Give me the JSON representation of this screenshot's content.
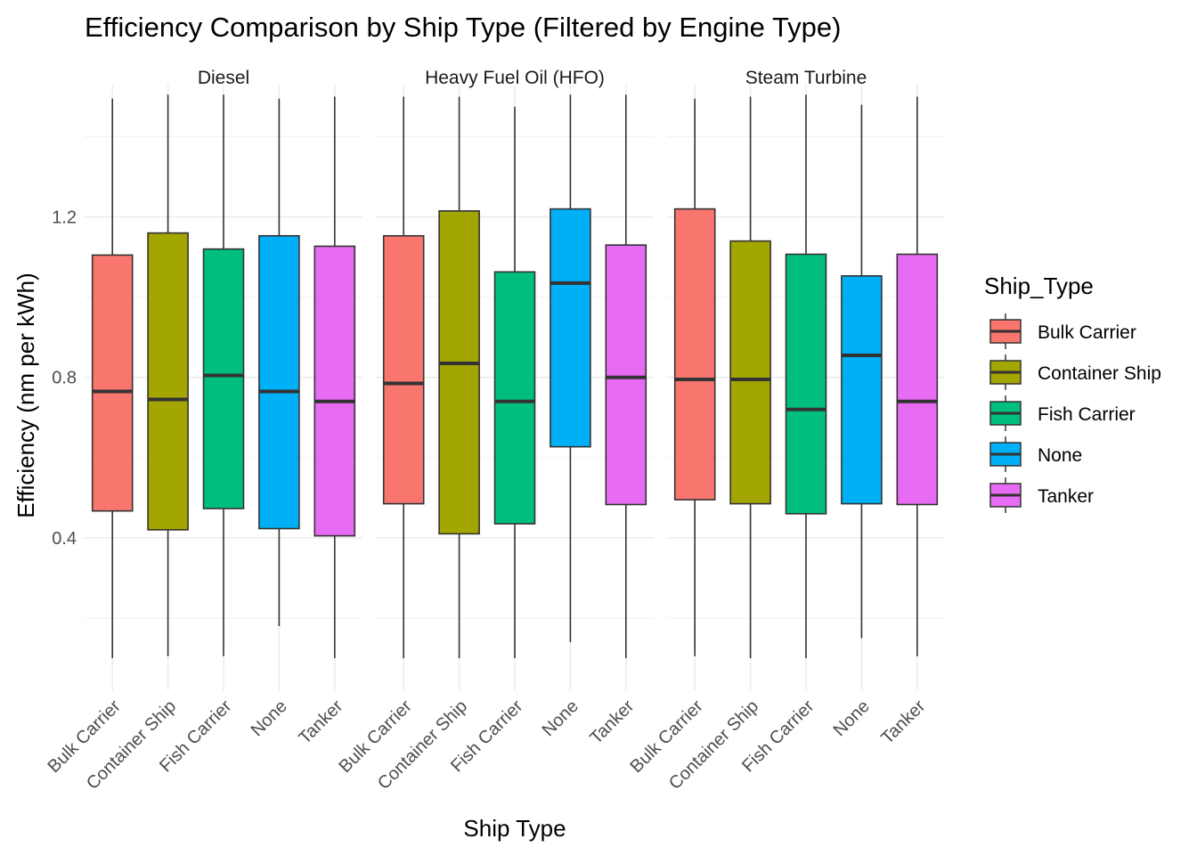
{
  "chart_data": {
    "type": "boxplot",
    "title": "Efficiency Comparison by Ship Type (Filtered by Engine Type)",
    "xlabel": "Ship Type",
    "ylabel": "Efficiency (nm per kWh)",
    "facets": [
      "Diesel",
      "Heavy Fuel Oil (HFO)",
      "Steam Turbine"
    ],
    "categories": [
      "Bulk Carrier",
      "Container Ship",
      "Fish Carrier",
      "None",
      "Tanker"
    ],
    "y_ticks": [
      "0.4",
      "0.8",
      "1.2"
    ],
    "ylim": [
      0.02,
      1.53
    ],
    "grid": true,
    "legend": {
      "title": "Ship_Type",
      "position": "right",
      "items": [
        "Bulk Carrier",
        "Container Ship",
        "Fish Carrier",
        "None",
        "Tanker"
      ]
    },
    "colors": {
      "Bulk Carrier": "#F8766D",
      "Container Ship": "#A3A500",
      "Fish Carrier": "#00BF7D",
      "None": "#00B0F6",
      "Tanker": "#E76BF3"
    },
    "boxes": {
      "Diesel": [
        {
          "category": "Bulk Carrier",
          "min": 0.1,
          "q1": 0.467,
          "median": 0.765,
          "q3": 1.105,
          "max": 1.495
        },
        {
          "category": "Container Ship",
          "min": 0.105,
          "q1": 0.42,
          "median": 0.745,
          "q3": 1.16,
          "max": 1.505
        },
        {
          "category": "Fish Carrier",
          "min": 0.105,
          "q1": 0.473,
          "median": 0.805,
          "q3": 1.12,
          "max": 1.505
        },
        {
          "category": "None",
          "min": 0.18,
          "q1": 0.423,
          "median": 0.765,
          "q3": 1.153,
          "max": 1.495
        },
        {
          "category": "Tanker",
          "min": 0.1,
          "q1": 0.405,
          "median": 0.74,
          "q3": 1.127,
          "max": 1.5
        }
      ],
      "Heavy Fuel Oil (HFO)": [
        {
          "category": "Bulk Carrier",
          "min": 0.1,
          "q1": 0.485,
          "median": 0.785,
          "q3": 1.153,
          "max": 1.5
        },
        {
          "category": "Container Ship",
          "min": 0.1,
          "q1": 0.41,
          "median": 0.835,
          "q3": 1.215,
          "max": 1.5
        },
        {
          "category": "Fish Carrier",
          "min": 0.1,
          "q1": 0.435,
          "median": 0.74,
          "q3": 1.063,
          "max": 1.475
        },
        {
          "category": "None",
          "min": 0.14,
          "q1": 0.627,
          "median": 1.035,
          "q3": 1.22,
          "max": 1.505
        },
        {
          "category": "Tanker",
          "min": 0.1,
          "q1": 0.483,
          "median": 0.8,
          "q3": 1.13,
          "max": 1.505
        }
      ],
      "Steam Turbine": [
        {
          "category": "Bulk Carrier",
          "min": 0.105,
          "q1": 0.495,
          "median": 0.795,
          "q3": 1.22,
          "max": 1.495
        },
        {
          "category": "Container Ship",
          "min": 0.1,
          "q1": 0.485,
          "median": 0.795,
          "q3": 1.14,
          "max": 1.5
        },
        {
          "category": "Fish Carrier",
          "min": 0.1,
          "q1": 0.46,
          "median": 0.72,
          "q3": 1.107,
          "max": 1.505
        },
        {
          "category": "None",
          "min": 0.15,
          "q1": 0.485,
          "median": 0.855,
          "q3": 1.053,
          "max": 1.48
        },
        {
          "category": "Tanker",
          "min": 0.105,
          "q1": 0.483,
          "median": 0.74,
          "q3": 1.107,
          "max": 1.5
        }
      ]
    }
  }
}
